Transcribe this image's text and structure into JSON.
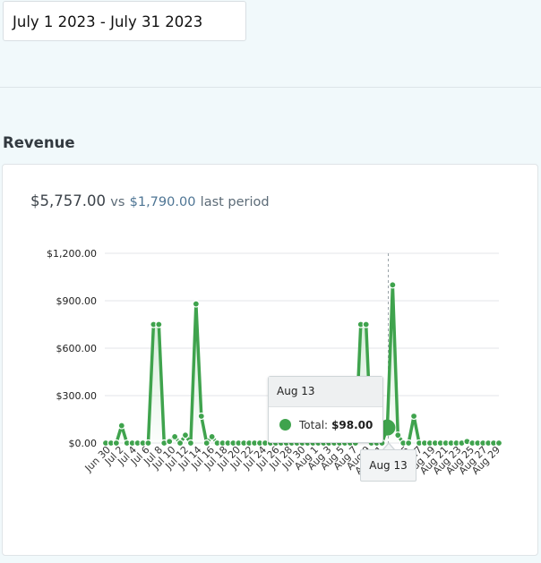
{
  "date_range": {
    "value": "July 1 2023 - July 31 2023"
  },
  "section": {
    "title": "Revenue"
  },
  "summary": {
    "total": "$5,757.00",
    "vs": "vs",
    "previous": "$1,790.00",
    "suffix": "last period"
  },
  "tooltip": {
    "date": "Aug 13",
    "label": "Total:",
    "value": "$98.00",
    "axis_label": "Aug 13"
  },
  "colors": {
    "series": "#3fa34d",
    "area_top": "#c6e6cb",
    "background": "#f1f9fb"
  },
  "chart_data": {
    "type": "line",
    "series_name": "Total",
    "y_ticks": [
      "$0.00",
      "$300.00",
      "$600.00",
      "$900.00",
      "$1,200.00"
    ],
    "y_tick_values": [
      0,
      300,
      600,
      900,
      1200
    ],
    "ylim": [
      0,
      1200
    ],
    "x_tick_labels": [
      "Jun 30",
      "Jul 2",
      "Jul 4",
      "Jul 6",
      "Jul 8",
      "Jul 10",
      "Jul 12",
      "Jul 14",
      "Jul 16",
      "Jul 18",
      "Jul 20",
      "Jul 22",
      "Jul 24",
      "Jul 26",
      "Jul 28",
      "Jul 30",
      "Aug 1",
      "Aug 3",
      "Aug 5",
      "Aug 7",
      "Aug 9",
      "Aug 11",
      "Aug 13",
      "Aug 15",
      "Aug 17",
      "Aug 19",
      "Aug 21",
      "Aug 23",
      "Aug 25",
      "Aug 27",
      "Aug 29"
    ],
    "values": [
      0,
      0,
      0,
      110,
      0,
      0,
      0,
      0,
      0,
      750,
      750,
      0,
      10,
      40,
      0,
      50,
      0,
      880,
      170,
      0,
      40,
      0,
      0,
      0,
      0,
      0,
      0,
      0,
      0,
      0,
      0,
      0,
      0,
      0,
      0,
      0,
      0,
      0,
      0,
      0,
      0,
      0,
      0,
      0,
      0,
      0,
      0,
      0,
      750,
      750,
      0,
      0,
      0,
      98,
      1000,
      50,
      0,
      0,
      170,
      0,
      0,
      0,
      0,
      0,
      0,
      0,
      0,
      0,
      10,
      0,
      0,
      0,
      0,
      0,
      0
    ],
    "highlight_index": 53,
    "grid": true,
    "legend": "none"
  }
}
